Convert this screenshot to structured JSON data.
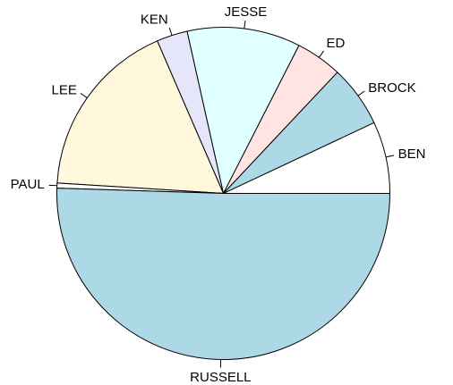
{
  "chart_data": {
    "type": "pie",
    "labels": [
      "BEN",
      "BROCK",
      "ED",
      "JESSE",
      "KEN",
      "LEE",
      "PAUL",
      "RUSSELL"
    ],
    "values": [
      7.0,
      6.0,
      4.5,
      11.0,
      3.0,
      17.5,
      0.5,
      50.5
    ],
    "colors": [
      "#FFFFFF",
      "#ADD8E6",
      "#FFE4E1",
      "#E0FFFF",
      "#E6E6FA",
      "#FFF8DC",
      "#FFFFFF",
      "#ADD8E6"
    ],
    "start_angle_deg": 0,
    "direction": "counterclockwise"
  }
}
